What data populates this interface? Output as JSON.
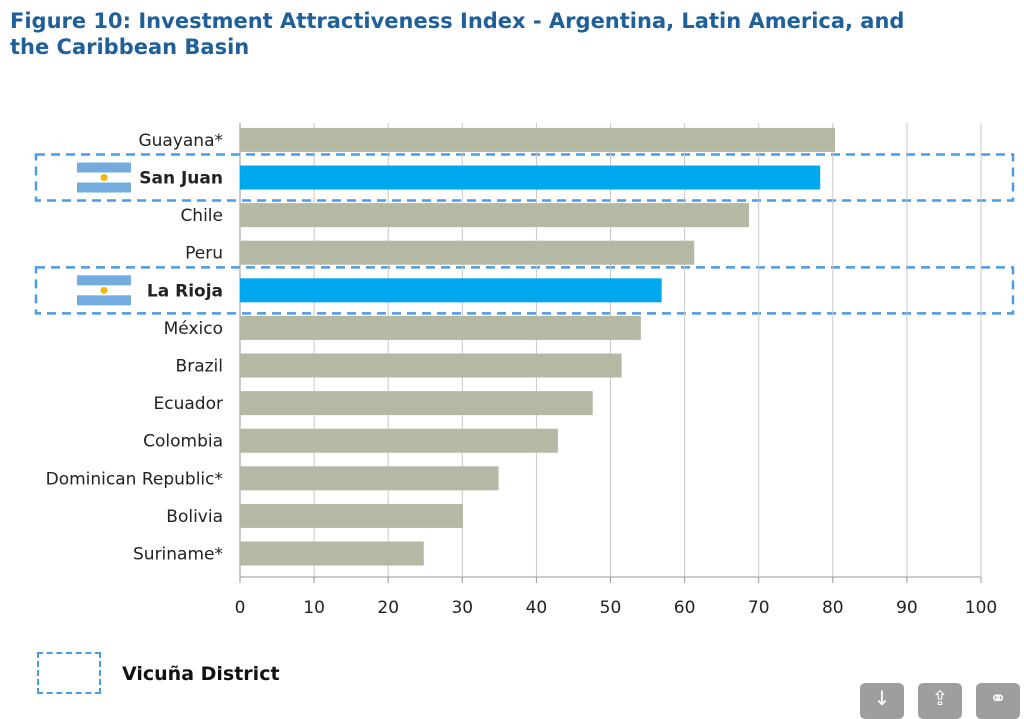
{
  "title": "Figure 10: Investment Attractiveness Index - Argentina, Latin America, and the Caribbean Basin",
  "legend": {
    "label": "Vicuña District",
    "color": "#4a9be8"
  },
  "colors": {
    "default_bar": "#b5b8a3",
    "highlight_bar": "#00a8ef",
    "grid": "#c8c8c8",
    "axis": "#9a9a9a",
    "highlight_border": "#4a9be8"
  },
  "chart_data": {
    "type": "bar",
    "orientation": "horizontal",
    "categories": [
      "Guayana*",
      "San Juan",
      "Chile",
      "Peru",
      "La Rioja",
      "México",
      "Brazil",
      "Ecuador",
      "Colombia",
      "Dominican Republic*",
      "Bolivia",
      "Suriname*"
    ],
    "values": [
      80.3,
      78.3,
      68.7,
      61.3,
      56.9,
      54.1,
      51.5,
      47.6,
      42.9,
      34.9,
      30.1,
      24.8
    ],
    "highlighted": [
      "San Juan",
      "La Rioja"
    ],
    "flag_icons": [
      "argentina-flag-icon",
      "argentina-flag-icon"
    ],
    "xlim": [
      0,
      100
    ],
    "xticks": [
      0,
      10,
      20,
      30,
      40,
      50,
      60,
      70,
      80,
      90,
      100
    ],
    "grid": true,
    "legend_position": "bottom-left"
  },
  "toolbar": {
    "icons": [
      "download-icon",
      "share-icon",
      "link-icon"
    ],
    "glyphs": [
      "↓",
      "⇪",
      "⚭"
    ]
  }
}
